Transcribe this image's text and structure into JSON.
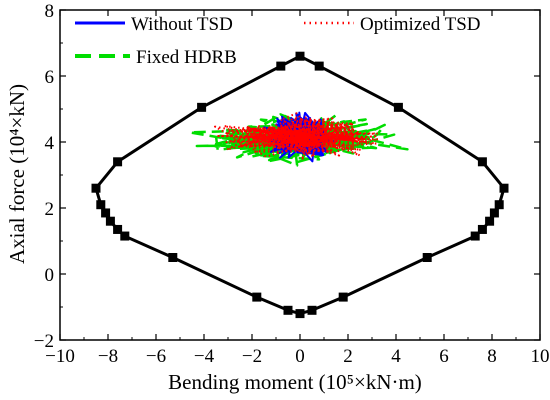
{
  "chart_data": {
    "type": "line",
    "xlabel": "Bending moment (10⁵×kN·m)",
    "ylabel": "Axial force (10⁴×kN)",
    "xlim": [
      -10,
      10
    ],
    "ylim": [
      -2,
      8
    ],
    "xticks": [
      "−10",
      "−8",
      "−6",
      "−4",
      "−2",
      "0",
      "2",
      "4",
      "6",
      "8",
      "10"
    ],
    "yticks": [
      "−2",
      "0",
      "2",
      "4",
      "6",
      "8"
    ],
    "legend_position": "top",
    "series": [
      {
        "name": "Without TSD",
        "color": "#0000ff",
        "style": "solid",
        "center": [
          0,
          4.15
        ],
        "x_range": [
          -1.5,
          1.8
        ],
        "y_range": [
          3.0,
          5.3
        ]
      },
      {
        "name": "Optimized TSD",
        "color": "#ff0000",
        "style": "dotted",
        "center": [
          0,
          4.15
        ],
        "x_range": [
          -4.0,
          4.0
        ],
        "y_range": [
          3.3,
          5.2
        ]
      },
      {
        "name": "Fixed HDRB",
        "color": "#00dd00",
        "style": "dashed",
        "center": [
          0,
          4.1
        ],
        "x_range": [
          -4.8,
          4.8
        ],
        "y_range": [
          3.2,
          5.5
        ]
      }
    ],
    "envelope": {
      "color": "#000000",
      "marker": "square",
      "points": [
        [
          0,
          6.6
        ],
        [
          0.8,
          6.3
        ],
        [
          4.1,
          5.05
        ],
        [
          7.6,
          3.4
        ],
        [
          8.5,
          2.6
        ],
        [
          8.3,
          2.1
        ],
        [
          8.1,
          1.85
        ],
        [
          7.9,
          1.6
        ],
        [
          7.6,
          1.35
        ],
        [
          7.3,
          1.15
        ],
        [
          5.3,
          0.5
        ],
        [
          1.8,
          -0.7
        ],
        [
          0.5,
          -1.1
        ],
        [
          0,
          -1.2
        ],
        [
          -0.5,
          -1.1
        ],
        [
          -1.8,
          -0.7
        ],
        [
          -5.3,
          0.5
        ],
        [
          -7.3,
          1.15
        ],
        [
          -7.6,
          1.35
        ],
        [
          -7.9,
          1.6
        ],
        [
          -8.1,
          1.85
        ],
        [
          -8.3,
          2.1
        ],
        [
          -8.5,
          2.6
        ],
        [
          -7.6,
          3.4
        ],
        [
          -4.1,
          5.05
        ],
        [
          -0.8,
          6.3
        ]
      ]
    }
  }
}
